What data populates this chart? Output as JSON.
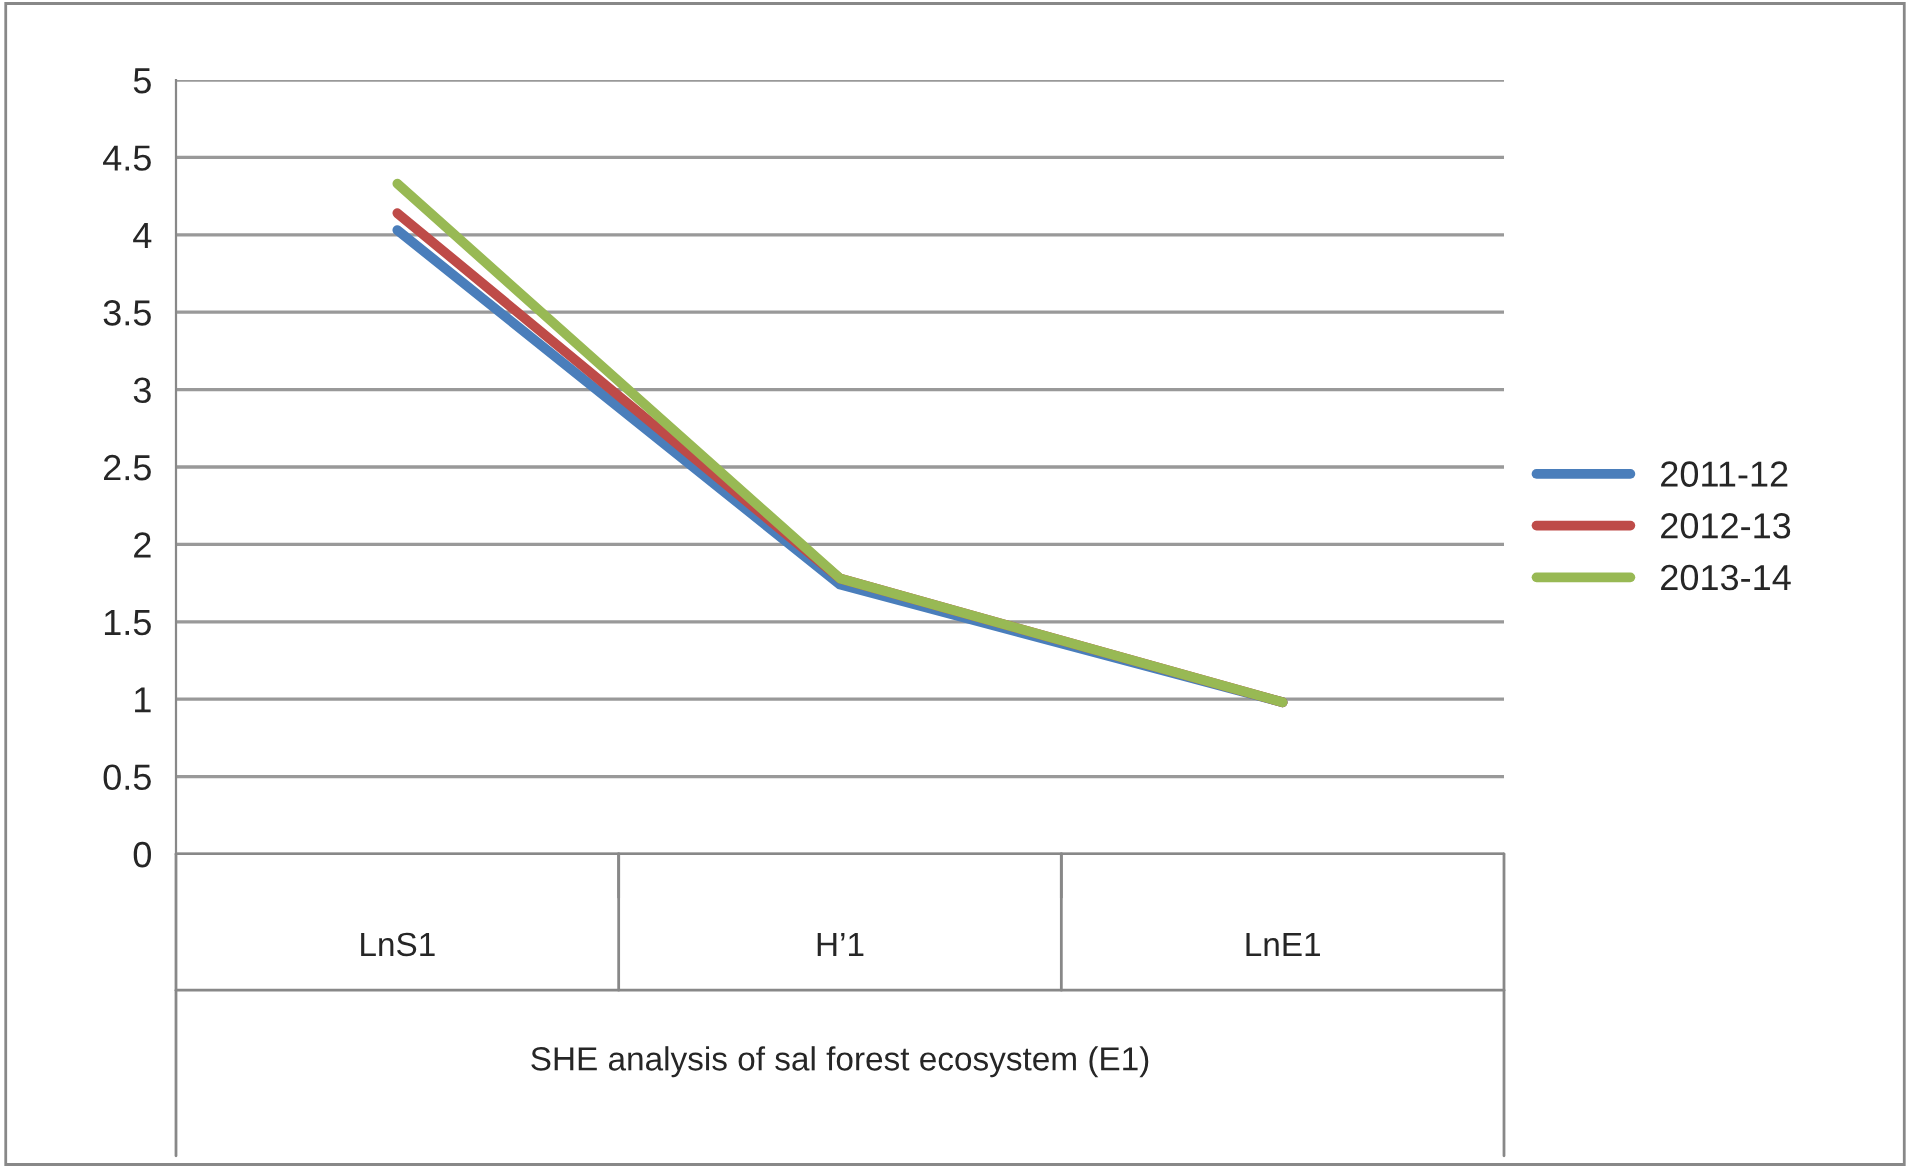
{
  "chart_data": {
    "type": "line",
    "xlabel": "SHE analysis of sal forest ecosystem (E1)",
    "categories": [
      "LnS1",
      "H’1",
      "LnE1"
    ],
    "series": [
      {
        "name": "2011-12",
        "color": "#4a7ebb",
        "values": [
          4.03,
          1.74,
          0.98
        ]
      },
      {
        "name": "2012-13",
        "color": "#be4b48",
        "values": [
          4.14,
          1.78,
          0.98
        ]
      },
      {
        "name": "2013-14",
        "color": "#98b954",
        "values": [
          4.33,
          1.78,
          0.98
        ]
      }
    ],
    "ylim": [
      0,
      5
    ],
    "yticks": [
      0,
      0.5,
      1,
      1.5,
      2,
      2.5,
      3,
      3.5,
      4,
      4.5,
      5
    ],
    "grid": "y",
    "legend": "right",
    "marker": "none",
    "line_style": "solid"
  }
}
